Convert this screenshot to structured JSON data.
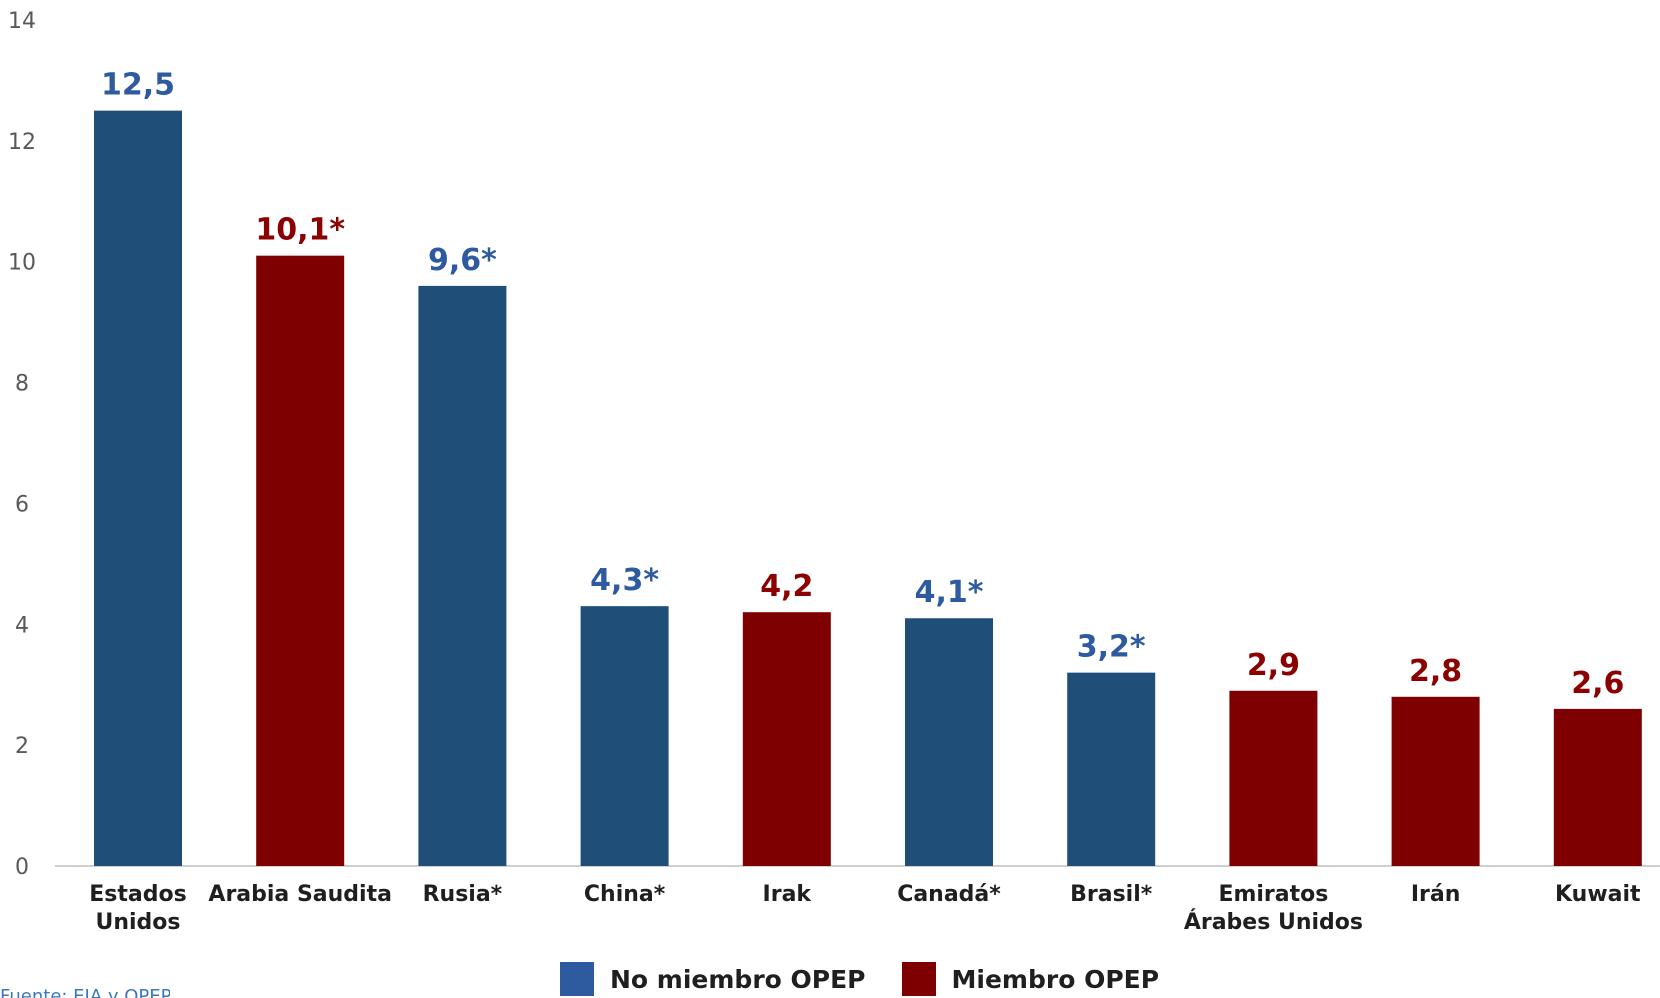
{
  "chart_data": {
    "type": "bar",
    "categories": [
      [
        "Estados",
        "Unidos"
      ],
      [
        "Arabia Saudita"
      ],
      [
        "Rusia*"
      ],
      [
        "China*"
      ],
      [
        "Irak"
      ],
      [
        "Canadá*"
      ],
      [
        "Brasil*"
      ],
      [
        "Emiratos",
        "Árabes Unidos"
      ],
      [
        "Irán"
      ],
      [
        "Kuwait"
      ]
    ],
    "values": [
      12.5,
      10.1,
      9.6,
      4.3,
      4.2,
      4.1,
      3.2,
      2.9,
      2.8,
      2.6
    ],
    "data_labels": [
      "12,5",
      "10,1*",
      "9,6*",
      "4,3*",
      "4,2",
      "4,1*",
      "3,2*",
      "2,9",
      "2,8",
      "2,6"
    ],
    "groups": [
      "no",
      "si",
      "no",
      "no",
      "si",
      "no",
      "no",
      "si",
      "si",
      "si"
    ],
    "ylim": [
      0,
      14
    ],
    "yticks": [
      0,
      2,
      4,
      6,
      8,
      10,
      12,
      14
    ],
    "grid": false,
    "legend_position": "bottom",
    "title": "",
    "xlabel": "",
    "ylabel": ""
  },
  "legend": {
    "no_member": "No miembro OPEP",
    "member": "Miembro OPEP"
  },
  "colors": {
    "no_member_bar": "#1f4e79",
    "member_bar": "#7f0000",
    "no_member_label": "#2e5aa0",
    "member_label": "#8b0000",
    "legend_no_member": "#2e5aa0",
    "legend_member": "#7f0000"
  },
  "source": "Fuente: EIA y OPEP"
}
